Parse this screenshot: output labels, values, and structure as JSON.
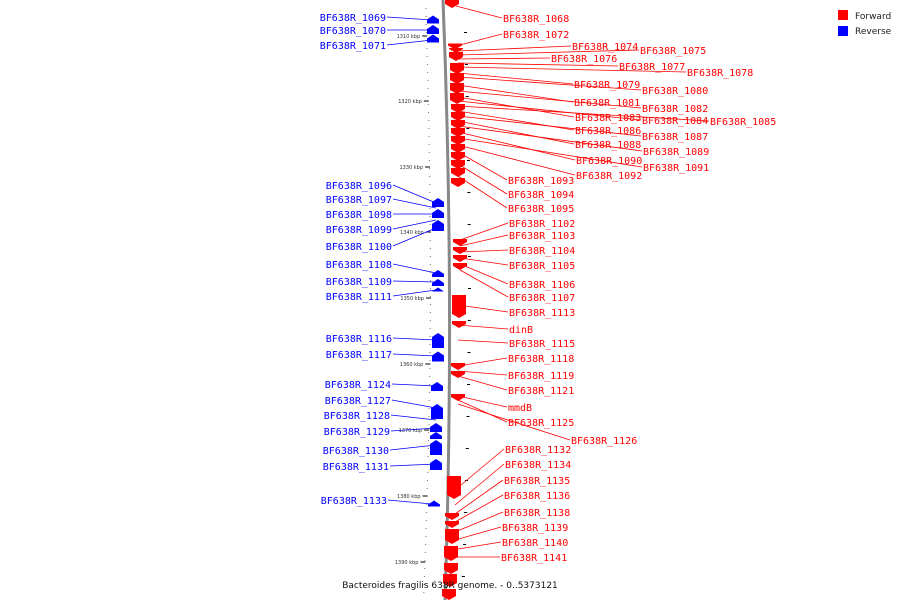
{
  "caption": "Bacteroides fragilis 638R genome. - 0..5373121",
  "legend": [
    {
      "label": "Forward",
      "color": "#ff0000"
    },
    {
      "label": "Reverse",
      "color": "#0000ff"
    }
  ],
  "colors": {
    "forward": "#ff0000",
    "reverse": "#0000ff",
    "axis": "#888888"
  },
  "ticks": [
    "1310 kbp",
    "1320 kbp",
    "1330 kbp",
    "1340 kbp",
    "1350 kbp",
    "1360 kbp",
    "1370 kbp",
    "1380 kbp",
    "1390 kbp"
  ],
  "forward_genes": [
    "BF638R_1068",
    "BF638R_1072",
    "BF638R_1074",
    "BF638R_1075",
    "BF638R_1076",
    "BF638R_1077",
    "BF638R_1078",
    "BF638R_1079",
    "BF638R_1080",
    "BF638R_1081",
    "BF638R_1082",
    "BF638R_1083",
    "BF638R_1084",
    "BF638R_1085",
    "BF638R_1086",
    "BF638R_1087",
    "BF638R_1088",
    "BF638R_1089",
    "BF638R_1090",
    "BF638R_1091",
    "BF638R_1092",
    "BF638R_1093",
    "BF638R_1094",
    "BF638R_1095",
    "BF638R_1102",
    "BF638R_1103",
    "BF638R_1104",
    "BF638R_1105",
    "BF638R_1106",
    "BF638R_1107",
    "BF638R_1113",
    "dinB",
    "BF638R_1115",
    "BF638R_1118",
    "BF638R_1119",
    "BF638R_1121",
    "mmdB",
    "BF638R_1125",
    "BF638R_1126",
    "BF638R_1132",
    "BF638R_1134",
    "BF638R_1135",
    "BF638R_1136",
    "BF638R_1138",
    "BF638R_1139",
    "BF638R_1140",
    "BF638R_1141"
  ],
  "reverse_genes": [
    "BF638R_1069",
    "BF638R_1070",
    "BF638R_1071",
    "BF638R_1096",
    "BF638R_1097",
    "BF638R_1098",
    "BF638R_1099",
    "BF638R_1100",
    "BF638R_1108",
    "BF638R_1109",
    "BF638R_1111",
    "BF638R_1116",
    "BF638R_1117",
    "BF638R_1124",
    "BF638R_1127",
    "BF638R_1128",
    "BF638R_1129",
    "BF638R_1130",
    "BF638R_1131",
    "BF638R_1133"
  ]
}
